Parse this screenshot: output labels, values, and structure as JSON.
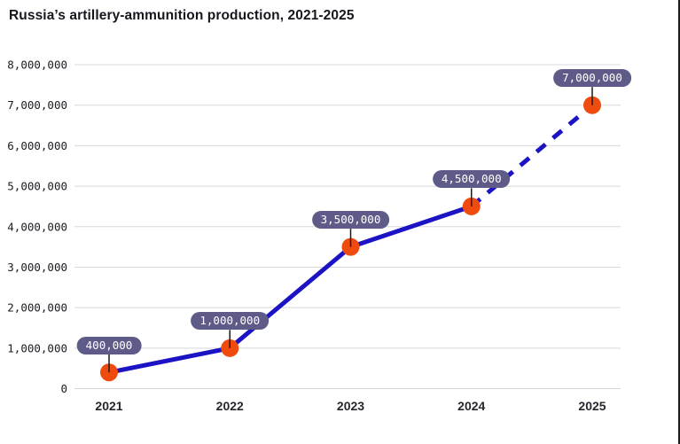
{
  "page": {
    "colors": {
      "line": "#1c13c4",
      "dot": "#f04b0f",
      "badge_bg": "#5f5b88",
      "badge_text": "#ffffff",
      "grid": "#d8d8dc",
      "title_text": "#17161f",
      "axis_text": "#26262e",
      "leader": "#1a1a1a",
      "window_border": "#1c1c1c",
      "background": "#ffffff"
    }
  },
  "chart_data": {
    "type": "line",
    "title": "Russia’s artillery-ammunition production, 2021-2025",
    "categories": [
      "2021",
      "2022",
      "2023",
      "2024",
      "2025"
    ],
    "values": [
      400000,
      1000000,
      3500000,
      4500000,
      7000000
    ],
    "point_labels": [
      "400,000",
      "1,000,000",
      "3,500,000",
      "4,500,000",
      "7,000,000"
    ],
    "y_ticks": [
      "0",
      "1,000,000",
      "2,000,000",
      "3,000,000",
      "4,000,000",
      "5,000,000",
      "6,000,000",
      "7,000,000",
      "8,000,000"
    ],
    "y_tick_values": [
      0,
      1000000,
      2000000,
      3000000,
      4000000,
      5000000,
      6000000,
      7000000,
      8000000
    ],
    "ylim": [
      0,
      8000000
    ],
    "xlabel": "",
    "ylabel": "",
    "grid": true,
    "legend": false,
    "dashed_from_index": 3,
    "dashed_meaning": "last segment drawn dashed"
  }
}
